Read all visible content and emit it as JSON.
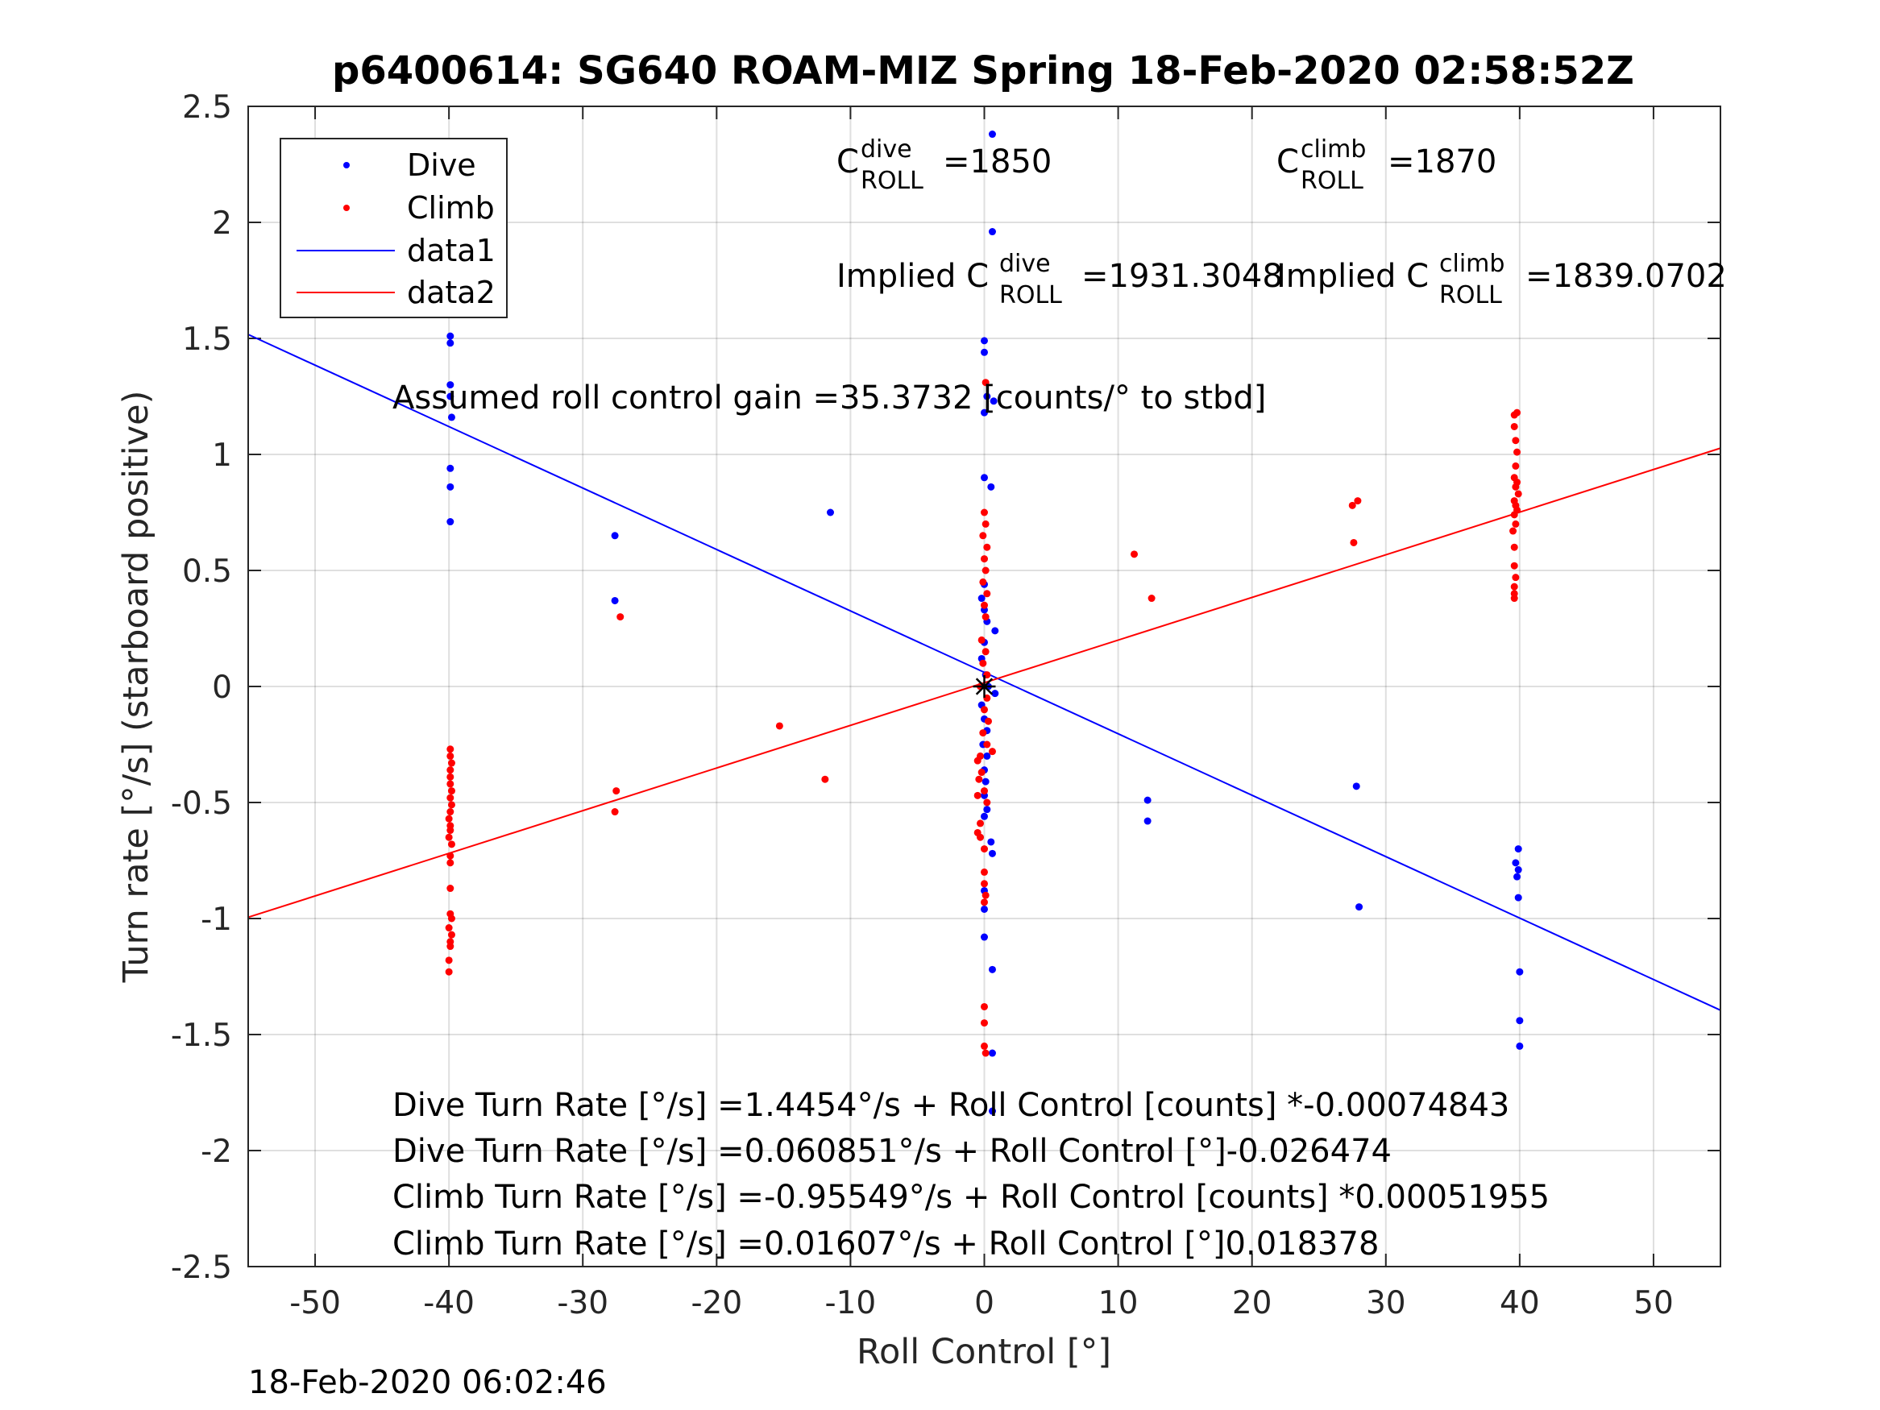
{
  "chart_data": {
    "type": "scatter",
    "title": "p6400614: SG640 ROAM-MIZ Spring 18-Feb-2020 02:58:52Z",
    "xlabel": "Roll Control [°]",
    "ylabel": "Turn rate [°/s] (starboard positive)",
    "xlim": [
      -55,
      55
    ],
    "ylim": [
      -2.5,
      2.5
    ],
    "xticks": [
      -50,
      -40,
      -30,
      -20,
      -10,
      0,
      10,
      20,
      30,
      40,
      50
    ],
    "xticklabels": [
      "-50",
      "-40",
      "-30",
      "-20",
      "-10",
      "0",
      "10",
      "20",
      "30",
      "40",
      "50"
    ],
    "yticks": [
      2.5,
      2,
      1.5,
      1,
      0.5,
      0,
      -0.5,
      -1,
      -1.5,
      -2,
      -2.5
    ],
    "yticklabels": [
      "2.5",
      "2",
      "1.5",
      "1",
      "0.5",
      "0",
      "-0.5",
      "-1",
      "-1.5",
      "-2",
      "-2.5"
    ],
    "grid": true,
    "legend_position": "top-left",
    "legend": [
      {
        "label": "Dive",
        "marker": "dot",
        "color": "#0000ff"
      },
      {
        "label": "Climb",
        "marker": "dot",
        "color": "#ff0000"
      },
      {
        "label": "data1",
        "marker": "line",
        "color": "#0000ff"
      },
      {
        "label": "data2",
        "marker": "line",
        "color": "#ff0000"
      }
    ],
    "series": [
      {
        "name": "Dive",
        "color": "#0000ff",
        "points": [
          [
            -39.9,
            1.51
          ],
          [
            -39.9,
            1.48
          ],
          [
            -39.9,
            1.3
          ],
          [
            -39.9,
            1.25
          ],
          [
            -39.8,
            1.16
          ],
          [
            -39.9,
            0.94
          ],
          [
            -39.9,
            0.86
          ],
          [
            -39.9,
            0.71
          ],
          [
            -27.6,
            0.65
          ],
          [
            -27.6,
            0.37
          ],
          [
            -11.5,
            0.75
          ],
          [
            0.6,
            2.38
          ],
          [
            0.6,
            1.96
          ],
          [
            0.0,
            1.49
          ],
          [
            0.0,
            1.44
          ],
          [
            0.2,
            1.25
          ],
          [
            0.7,
            1.23
          ],
          [
            0.0,
            1.18
          ],
          [
            0.0,
            0.9
          ],
          [
            0.5,
            0.86
          ],
          [
            0.0,
            0.44
          ],
          [
            -0.2,
            0.38
          ],
          [
            0.0,
            0.33
          ],
          [
            0.2,
            0.28
          ],
          [
            0.8,
            0.24
          ],
          [
            0.0,
            0.19
          ],
          [
            -0.2,
            0.12
          ],
          [
            0.1,
            0.05
          ],
          [
            0.3,
            0.0
          ],
          [
            0.8,
            -0.03
          ],
          [
            -0.2,
            -0.08
          ],
          [
            0.0,
            -0.14
          ],
          [
            0.2,
            -0.19
          ],
          [
            -0.1,
            -0.25
          ],
          [
            0.2,
            -0.3
          ],
          [
            0.0,
            -0.36
          ],
          [
            0.1,
            -0.41
          ],
          [
            0.0,
            -0.47
          ],
          [
            0.2,
            -0.53
          ],
          [
            0.0,
            -0.56
          ],
          [
            0.5,
            -0.67
          ],
          [
            0.6,
            -0.72
          ],
          [
            0.0,
            -0.88
          ],
          [
            0.0,
            -0.96
          ],
          [
            0.0,
            -1.08
          ],
          [
            0.6,
            -1.22
          ],
          [
            0.6,
            -1.58
          ],
          [
            0.6,
            -1.83
          ],
          [
            12.2,
            -0.49
          ],
          [
            12.2,
            -0.58
          ],
          [
            27.8,
            -0.43
          ],
          [
            28.0,
            -0.95
          ],
          [
            39.9,
            -0.7
          ],
          [
            39.7,
            -0.76
          ],
          [
            39.9,
            -0.79
          ],
          [
            39.8,
            -0.82
          ],
          [
            39.9,
            -0.91
          ],
          [
            40.0,
            -1.23
          ],
          [
            40.0,
            -1.44
          ],
          [
            40.0,
            -1.55
          ]
        ]
      },
      {
        "name": "Climb",
        "color": "#ff0000",
        "points": [
          [
            -39.9,
            -0.27
          ],
          [
            -39.9,
            -0.3
          ],
          [
            -39.8,
            -0.33
          ],
          [
            -39.9,
            -0.36
          ],
          [
            -39.9,
            -0.39
          ],
          [
            -39.9,
            -0.42
          ],
          [
            -39.8,
            -0.45
          ],
          [
            -39.9,
            -0.48
          ],
          [
            -39.8,
            -0.51
          ],
          [
            -39.9,
            -0.54
          ],
          [
            -40.0,
            -0.57
          ],
          [
            -39.9,
            -0.6
          ],
          [
            -39.9,
            -0.62
          ],
          [
            -40.0,
            -0.65
          ],
          [
            -39.8,
            -0.68
          ],
          [
            -39.9,
            -0.73
          ],
          [
            -39.9,
            -0.76
          ],
          [
            -39.9,
            -0.87
          ],
          [
            -39.9,
            -0.98
          ],
          [
            -39.8,
            -1.0
          ],
          [
            -40.0,
            -1.04
          ],
          [
            -39.8,
            -1.07
          ],
          [
            -39.9,
            -1.1
          ],
          [
            -39.9,
            -1.12
          ],
          [
            -40.0,
            -1.18
          ],
          [
            -40.0,
            -1.23
          ],
          [
            -27.2,
            0.3
          ],
          [
            -27.5,
            -0.45
          ],
          [
            -27.6,
            -0.54
          ],
          [
            -15.3,
            -0.17
          ],
          [
            -11.9,
            -0.4
          ],
          [
            0.1,
            1.31
          ],
          [
            0.0,
            0.75
          ],
          [
            0.1,
            0.7
          ],
          [
            -0.1,
            0.65
          ],
          [
            0.2,
            0.6
          ],
          [
            0.0,
            0.55
          ],
          [
            0.1,
            0.5
          ],
          [
            -0.1,
            0.45
          ],
          [
            0.2,
            0.4
          ],
          [
            0.0,
            0.35
          ],
          [
            0.1,
            0.3
          ],
          [
            -0.2,
            0.2
          ],
          [
            0.1,
            0.15
          ],
          [
            -0.1,
            0.1
          ],
          [
            0.2,
            0.05
          ],
          [
            -0.3,
            0.0
          ],
          [
            0.2,
            -0.05
          ],
          [
            0.0,
            -0.1
          ],
          [
            0.3,
            -0.15
          ],
          [
            -0.1,
            -0.2
          ],
          [
            0.2,
            -0.25
          ],
          [
            0.6,
            -0.28
          ],
          [
            -0.3,
            -0.3
          ],
          [
            -0.5,
            -0.32
          ],
          [
            -0.2,
            -0.37
          ],
          [
            -0.4,
            -0.4
          ],
          [
            0.0,
            -0.45
          ],
          [
            -0.5,
            -0.47
          ],
          [
            0.2,
            -0.5
          ],
          [
            -0.3,
            -0.59
          ],
          [
            -0.5,
            -0.63
          ],
          [
            -0.3,
            -0.65
          ],
          [
            0.0,
            -0.7
          ],
          [
            0.0,
            -0.8
          ],
          [
            0.0,
            -0.85
          ],
          [
            0.1,
            -0.9
          ],
          [
            0.0,
            -0.93
          ],
          [
            0.0,
            -1.38
          ],
          [
            0.0,
            -1.45
          ],
          [
            0.0,
            -1.55
          ],
          [
            0.1,
            -1.58
          ],
          [
            11.2,
            0.57
          ],
          [
            12.5,
            0.38
          ],
          [
            27.5,
            0.78
          ],
          [
            27.9,
            0.8
          ],
          [
            27.6,
            0.62
          ],
          [
            39.8,
            1.18
          ],
          [
            39.6,
            1.17
          ],
          [
            39.6,
            1.12
          ],
          [
            39.7,
            1.06
          ],
          [
            39.8,
            1.01
          ],
          [
            39.7,
            0.95
          ],
          [
            39.6,
            0.9
          ],
          [
            39.8,
            0.88
          ],
          [
            39.7,
            0.86
          ],
          [
            39.9,
            0.83
          ],
          [
            39.6,
            0.8
          ],
          [
            39.7,
            0.78
          ],
          [
            39.8,
            0.76
          ],
          [
            39.6,
            0.74
          ],
          [
            39.7,
            0.7
          ],
          [
            39.5,
            0.67
          ],
          [
            39.6,
            0.6
          ],
          [
            39.6,
            0.52
          ],
          [
            39.7,
            0.47
          ],
          [
            39.6,
            0.43
          ],
          [
            39.6,
            0.4
          ],
          [
            39.6,
            0.38
          ]
        ]
      }
    ],
    "lines": [
      {
        "name": "data1",
        "color": "#0000ff",
        "intercept": 0.060851,
        "slope": -0.026474
      },
      {
        "name": "data2",
        "color": "#ff0000",
        "intercept": 0.01607,
        "slope": 0.018378
      }
    ],
    "center_marker": {
      "x": 0,
      "y": 0,
      "symbol": "*"
    },
    "annotations": {
      "c_dive": {
        "base": "C",
        "sup": "dive",
        "sub": "ROLL",
        "value": "=1850"
      },
      "c_climb": {
        "base": "C",
        "sup": "climb",
        "sub": "ROLL",
        "value": "=1870"
      },
      "implied_dive": {
        "base": "Implied C",
        "sup": "dive",
        "sub": "ROLL",
        "value": "=1931.3048"
      },
      "implied_climb": {
        "base": "Implied C",
        "sup": "climb",
        "sub": "ROLL",
        "value": "=1839.0702"
      },
      "gain": "Assumed roll control gain =35.3732 [counts/° to stbd]",
      "eq1": "Dive Turn Rate [°/s] =1.4454°/s + Roll Control [counts] *-0.00074843",
      "eq2": "Dive Turn Rate [°/s] =0.060851°/s + Roll Control [°]-0.026474",
      "eq3": "Climb Turn Rate [°/s] =-0.95549°/s + Roll Control [counts] *0.00051955",
      "eq4": "Climb Turn Rate [°/s] =0.01607°/s + Roll Control [°]0.018378"
    },
    "timestamp": "18-Feb-2020 06:02:46"
  }
}
